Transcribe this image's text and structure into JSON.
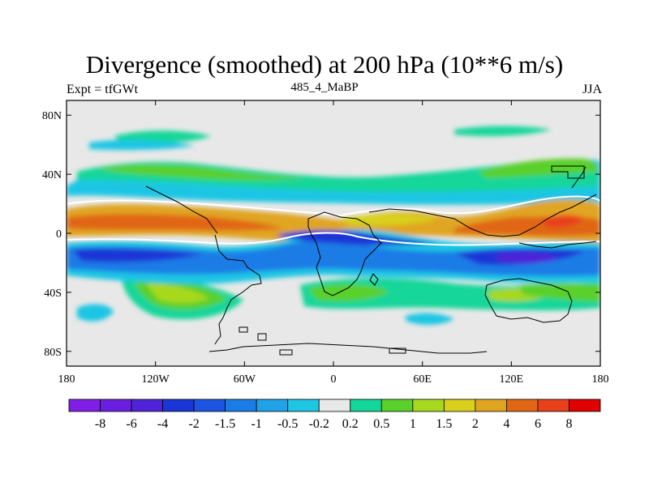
{
  "chart_data": {
    "type": "heatmap",
    "title": "Divergence (smoothed) at 200 hPa (10**6 m/s)",
    "subtitle_left": "Expt = tfGWt",
    "subtitle_center": "485_4_MaBP",
    "subtitle_right": "JJA",
    "x_range": [
      -180,
      180
    ],
    "y_range": [
      -90,
      90
    ],
    "x_ticks": [
      {
        "value": -180,
        "label": "180"
      },
      {
        "value": -120,
        "label": "120W"
      },
      {
        "value": -60,
        "label": "60W"
      },
      {
        "value": 0,
        "label": "0"
      },
      {
        "value": 60,
        "label": "60E"
      },
      {
        "value": 120,
        "label": "120E"
      },
      {
        "value": 180,
        "label": "180"
      }
    ],
    "y_ticks": [
      {
        "value": 80,
        "label": "80N"
      },
      {
        "value": 40,
        "label": "40N"
      },
      {
        "value": 0,
        "label": "0"
      },
      {
        "value": -40,
        "label": "40S"
      },
      {
        "value": -80,
        "label": "80S"
      }
    ],
    "colorbar": {
      "levels": [
        "-8",
        "-6",
        "-4",
        "-2",
        "-1.5",
        "-1",
        "-0.5",
        "-0.2",
        "0.2",
        "0.5",
        "1",
        "1.5",
        "2",
        "4",
        "6",
        "8"
      ],
      "colors": [
        "#7f1fe6",
        "#6a1fe0",
        "#4f24d8",
        "#1a36d6",
        "#1d55e3",
        "#1b7ce6",
        "#1fa2e6",
        "#1ec6e3",
        "#e8e8e8",
        "#12d69a",
        "#5ad02b",
        "#a8d81e",
        "#d8d01d",
        "#e0a520",
        "#e06616",
        "#e8401b",
        "#e00000"
      ]
    },
    "features": [
      {
        "name": "equatorial convergence band",
        "lon_range": [
          -180,
          180
        ],
        "lat_center": -15,
        "sign": "negative",
        "min_value": -8
      },
      {
        "name": "northern divergence band",
        "lon_range": [
          -180,
          180
        ],
        "lat_center": 5,
        "sign": "positive",
        "max_value": 6
      },
      {
        "name": "northern midlatitude divergence",
        "lon_range": [
          -180,
          180
        ],
        "lat_center": 40,
        "sign": "positive",
        "max_value": 1.5
      },
      {
        "name": "southern midlatitude divergence",
        "lon_range": [
          -180,
          180
        ],
        "lat_center": -42,
        "sign": "positive",
        "max_value": 2
      }
    ],
    "grid": false
  }
}
